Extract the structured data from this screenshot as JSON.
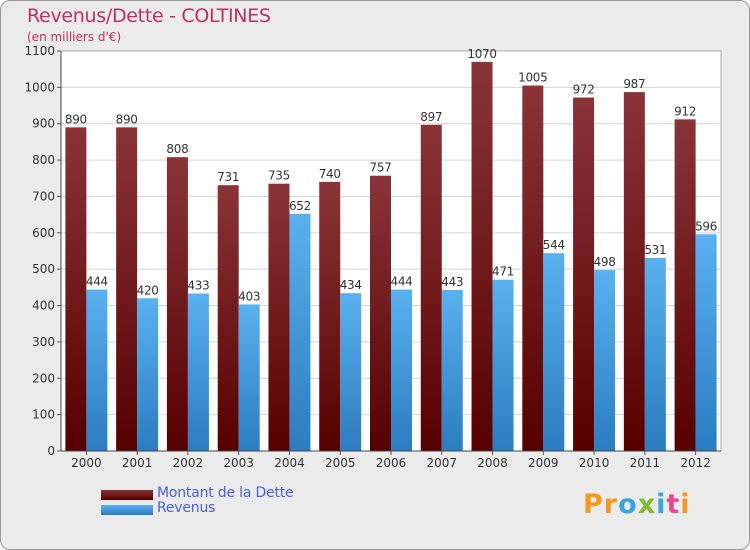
{
  "header": {
    "title": "Revenus/Dette - COLTINES",
    "subtitle": "(en milliers d'€)"
  },
  "colors": {
    "debt_top": "#8a3438",
    "debt_bottom": "#560000",
    "revenue_top": "#5ab1ef",
    "revenue_bottom": "#2b7cc0",
    "title": "#c0305c",
    "legend_text": "#4a60d8"
  },
  "chart_data": {
    "type": "bar",
    "title": "Revenus/Dette - COLTINES",
    "ylabel": "(en milliers d'€)",
    "xlabel": "",
    "ylim": [
      0,
      1100
    ],
    "yticks": [
      0,
      100,
      200,
      300,
      400,
      500,
      600,
      700,
      800,
      900,
      1000,
      1100
    ],
    "grid": true,
    "categories": [
      "2000",
      "2001",
      "2002",
      "2003",
      "2004",
      "2005",
      "2006",
      "2007",
      "2008",
      "2009",
      "2010",
      "2011",
      "2012"
    ],
    "series": [
      {
        "name": "Montant de la Dette",
        "values": [
          890,
          890,
          808,
          731,
          735,
          740,
          757,
          897,
          1070,
          1005,
          972,
          987,
          912
        ]
      },
      {
        "name": "Revenus",
        "values": [
          444,
          420,
          433,
          403,
          652,
          434,
          444,
          443,
          471,
          544,
          498,
          531,
          596
        ]
      }
    ],
    "legend_position": "bottom-left"
  },
  "legend": {
    "items": [
      {
        "label": "Montant de la Dette"
      },
      {
        "label": "Revenus"
      }
    ]
  },
  "logo": {
    "letters": [
      "P",
      "r",
      "o",
      "x",
      "i",
      "t",
      "i"
    ],
    "colors": [
      "#f39a1e",
      "#f39a1e",
      "#35a7e0",
      "#7cbf2c",
      "#35a7e0",
      "#e94b8a",
      "#f39a1e"
    ]
  }
}
